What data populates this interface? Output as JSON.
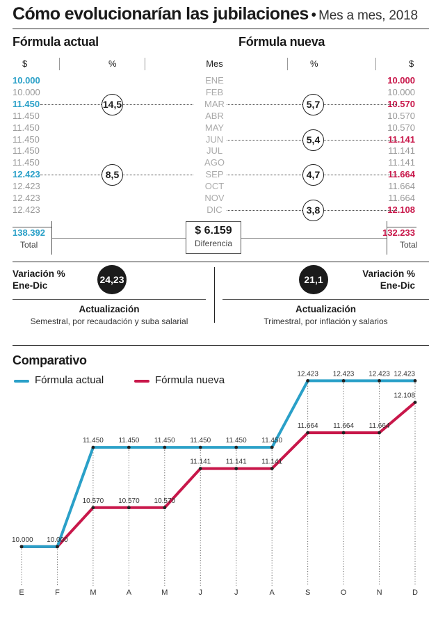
{
  "header": {
    "title": "Cómo evolucionarían las jubilaciones",
    "bullet": "•",
    "subtitle": "Mes a mes, 2018"
  },
  "table": {
    "left_title": "Fórmula actual",
    "right_title": "Fórmula nueva",
    "col_dollar": "$",
    "col_pct": "%",
    "col_mes": "Mes",
    "months": [
      "ENE",
      "FEB",
      "MAR",
      "ABR",
      "MAY",
      "JUN",
      "JUL",
      "AGO",
      "SEP",
      "OCT",
      "NOV",
      "DIC"
    ],
    "actual": [
      "10.000",
      "10.000",
      "11.450",
      "11.450",
      "11.450",
      "11.450",
      "11.450",
      "11.450",
      "12.423",
      "12.423",
      "12.423",
      "12.423"
    ],
    "nueva": [
      "10.000",
      "10.000",
      "10.570",
      "10.570",
      "10.570",
      "11.141",
      "11.141",
      "11.141",
      "11.664",
      "11.664",
      "11.664",
      "12.108"
    ],
    "actual_changes": [
      {
        "row": 2,
        "pct": "14,5"
      },
      {
        "row": 8,
        "pct": "8,5"
      }
    ],
    "nueva_changes": [
      {
        "row": 2,
        "pct": "5,7"
      },
      {
        "row": 5,
        "pct": "5,4"
      },
      {
        "row": 8,
        "pct": "4,7"
      },
      {
        "row": 11,
        "pct": "3,8"
      }
    ],
    "total_actual": "138.392",
    "total_nueva": "132.233",
    "total_label": "Total",
    "difference": "$ 6.159",
    "difference_label": "Diferencia"
  },
  "variation": {
    "label_line1": "Variación %",
    "label_line2": "Ene-Dic",
    "actual_value": "24,23",
    "nueva_value": "21,1"
  },
  "update": {
    "title": "Actualización",
    "actual_desc": "Semestral, por recaudación y suba salarial",
    "nueva_desc": "Trimestral, por inflación y salarios"
  },
  "comparativo_title": "Comparativo",
  "colors": {
    "actual": "#2aa0c8",
    "nueva": "#c8174a"
  },
  "chart_data": {
    "type": "line",
    "categories": [
      "E",
      "F",
      "M",
      "A",
      "M",
      "J",
      "J",
      "A",
      "S",
      "O",
      "N",
      "D"
    ],
    "series": [
      {
        "name": "Fórmula actual",
        "values": [
          10000,
          10000,
          11450,
          11450,
          11450,
          11450,
          11450,
          11450,
          12423,
          12423,
          12423,
          12423
        ],
        "labels": [
          "10.000",
          "10.000",
          "11.450",
          "11.450",
          "11.450",
          "11.450",
          "11.450",
          "11.450",
          "12.423",
          "12.423",
          "12.423",
          "12.423"
        ]
      },
      {
        "name": "Fórmula nueva",
        "values": [
          10000,
          10000,
          10570,
          10570,
          10570,
          11141,
          11141,
          11141,
          11664,
          11664,
          11664,
          12108
        ],
        "labels": [
          "",
          "",
          "10.570",
          "10.570",
          "10.570",
          "11.141",
          "11.141",
          "11.141",
          "11.664",
          "11.664",
          "11.664",
          "12.108"
        ]
      }
    ],
    "ylim": [
      9450,
      12600
    ],
    "grid": true,
    "legend": "top-left"
  }
}
